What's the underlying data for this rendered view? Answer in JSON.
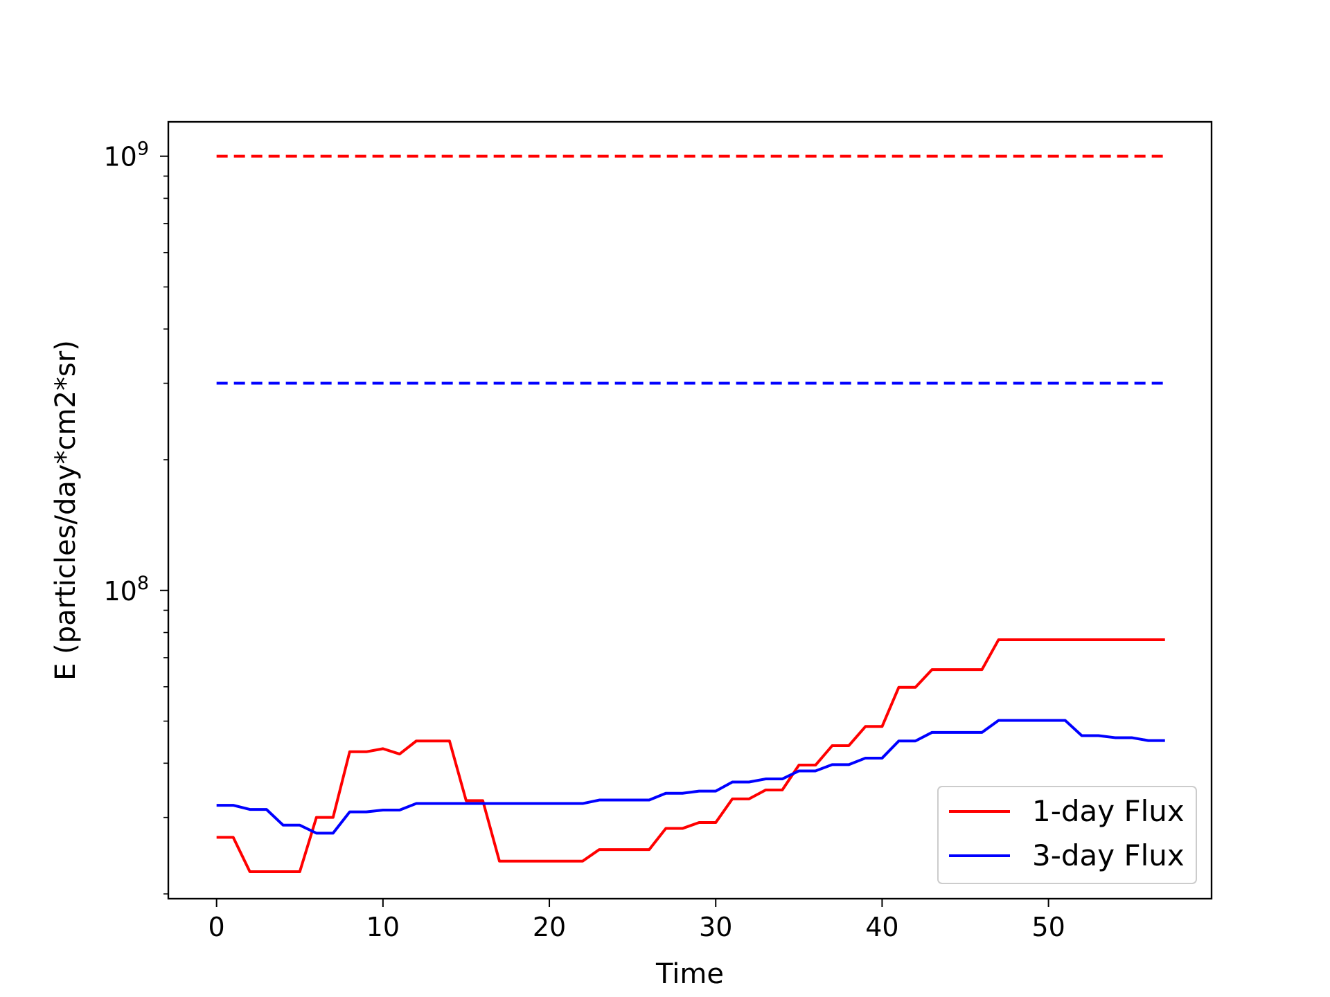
{
  "chart_data": {
    "type": "line",
    "xlabel": "Time",
    "ylabel": "E (particles/day*cm2*sr)",
    "yscale": "log",
    "xlim": [
      -2.9,
      59.8
    ],
    "ylim": [
      19500000.0,
      1200000000.0
    ],
    "xticks": [
      {
        "value": 0,
        "label": "0"
      },
      {
        "value": 10,
        "label": "10"
      },
      {
        "value": 20,
        "label": "20"
      },
      {
        "value": 30,
        "label": "30"
      },
      {
        "value": 40,
        "label": "40"
      },
      {
        "value": 50,
        "label": "50"
      }
    ],
    "yticks": [
      {
        "value": 100000000,
        "base": "10",
        "exp": "8"
      },
      {
        "value": 1000000000,
        "base": "10",
        "exp": "9"
      }
    ],
    "grid": false,
    "legend": {
      "placement": "lower-right"
    },
    "series": [
      {
        "name": "1-day Flux",
        "color": "#ff0000",
        "style": "solid",
        "x": [
          0,
          1,
          2,
          3,
          4,
          5,
          6,
          7,
          8,
          9,
          10,
          11,
          12,
          13,
          14,
          15,
          16,
          17,
          18,
          19,
          20,
          21,
          22,
          23,
          24,
          25,
          26,
          27,
          28,
          29,
          30,
          31,
          32,
          33,
          34,
          35,
          36,
          37,
          38,
          39,
          40,
          41,
          42,
          43,
          44,
          45,
          46,
          47,
          48,
          49,
          50,
          51,
          52,
          53,
          54,
          55,
          56,
          57
        ],
        "values": [
          27000000,
          27000000,
          22500000,
          22500000,
          22500000,
          22500000,
          30000000,
          30000000,
          42500000,
          42500000,
          43200000,
          42000000,
          45000000,
          45000000,
          45000000,
          32800000,
          32800000,
          23800000,
          23800000,
          23800000,
          23800000,
          23800000,
          23800000,
          25300000,
          25300000,
          25300000,
          25300000,
          28300000,
          28300000,
          29200000,
          29200000,
          33100000,
          33100000,
          34700000,
          34700000,
          39600000,
          39600000,
          43900000,
          43900000,
          48600000,
          48600000,
          59800000,
          59800000,
          65700000,
          65700000,
          65700000,
          65700000,
          77000000,
          77000000,
          77000000,
          77000000,
          77000000,
          77000000,
          77000000,
          77000000,
          77000000,
          77000000,
          77000000
        ]
      },
      {
        "name": "3-day Flux",
        "color": "#0000ff",
        "style": "solid",
        "x": [
          0,
          1,
          2,
          3,
          4,
          5,
          6,
          7,
          8,
          9,
          10,
          11,
          12,
          13,
          14,
          15,
          16,
          17,
          18,
          19,
          20,
          21,
          22,
          23,
          24,
          25,
          26,
          27,
          28,
          29,
          30,
          31,
          32,
          33,
          34,
          35,
          36,
          37,
          38,
          39,
          40,
          41,
          42,
          43,
          44,
          45,
          46,
          47,
          48,
          49,
          50,
          51,
          52,
          53,
          54,
          55,
          56,
          57
        ],
        "values": [
          32000000,
          32000000,
          31300000,
          31300000,
          28800000,
          28800000,
          27600000,
          27600000,
          30900000,
          30900000,
          31200000,
          31200000,
          32300000,
          32300000,
          32300000,
          32300000,
          32300000,
          32300000,
          32300000,
          32300000,
          32300000,
          32300000,
          32300000,
          32900000,
          32900000,
          32900000,
          32900000,
          34100000,
          34100000,
          34500000,
          34500000,
          36200000,
          36200000,
          36800000,
          36800000,
          38400000,
          38400000,
          39700000,
          39700000,
          41100000,
          41100000,
          45000000,
          45000000,
          47100000,
          47100000,
          47100000,
          47100000,
          50200000,
          50200000,
          50200000,
          50200000,
          50200000,
          46300000,
          46300000,
          45800000,
          45800000,
          45100000,
          45100000
        ]
      },
      {
        "name": "",
        "color": "#ff0000",
        "style": "dashed",
        "x": [
          0,
          57
        ],
        "values": [
          1000000000,
          1000000000
        ]
      },
      {
        "name": "",
        "color": "#0000ff",
        "style": "dashed",
        "x": [
          0,
          57
        ],
        "values": [
          300000000,
          300000000
        ]
      }
    ]
  }
}
